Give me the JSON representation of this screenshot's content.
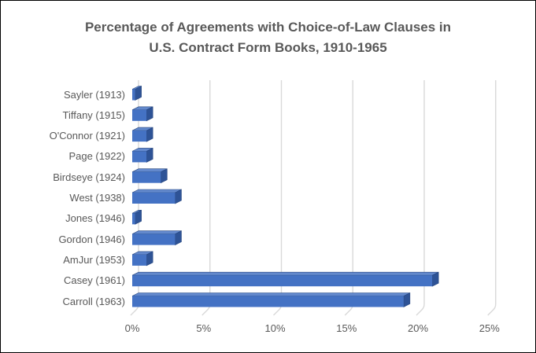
{
  "title": {
    "line1": "Percentage of Agreements with Choice-of-Law Clauses in",
    "line2": "U.S. Contract Form Books, 1910-1965"
  },
  "chart_data": {
    "type": "bar",
    "orientation": "horizontal",
    "style": "3d-clustered-bar",
    "title": "Percentage of Agreements with Choice-of-Law Clauses in U.S. Contract Form Books, 1910-1965",
    "categories": [
      "Sayler (1913)",
      "Tiffany (1915)",
      "O'Connor (1921)",
      "Page (1922)",
      "Birdseye (1924)",
      "West (1938)",
      "Jones (1946)",
      "Gordon (1946)",
      "AmJur (1953)",
      "Casey (1961)",
      "Carroll (1963)"
    ],
    "values": [
      0.2,
      1,
      1,
      1,
      2,
      3,
      0.2,
      3,
      1,
      21,
      19
    ],
    "value_unit": "%",
    "xlabel": "",
    "ylabel": "",
    "xticks": [
      "0%",
      "5%",
      "10%",
      "15%",
      "20%",
      "25%"
    ],
    "xlim": [
      0,
      25
    ],
    "grid": "vertical-gridlines-with-3d-feet",
    "legend": "none",
    "colors": {
      "bar_front": "#4472C4",
      "bar_top": "#6389CD",
      "bar_side": "#2E5396",
      "bar_edge": "#24447E",
      "gridline": "#D9D9D9",
      "text": "#595959",
      "background": "#FFFFFF",
      "frame_border": "#000000"
    }
  }
}
